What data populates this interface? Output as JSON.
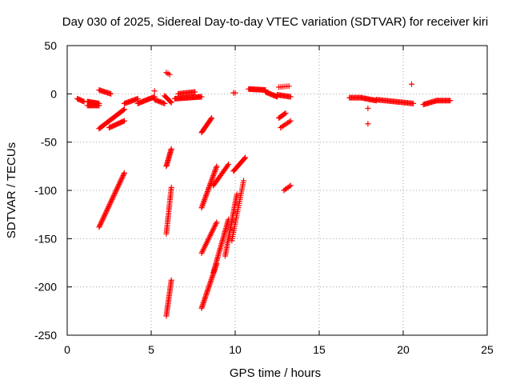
{
  "chart_data": {
    "type": "scatter",
    "title": "Day 030 of 2025, Sidereal Day-to-day VTEC variation (SDTVAR) for receiver kiri",
    "xlabel": "GPS time / hours",
    "ylabel": "SDTVAR / TECUs",
    "xlim": [
      0,
      25
    ],
    "ylim": [
      -250,
      50
    ],
    "xticks": [
      0,
      5,
      10,
      15,
      20,
      25
    ],
    "yticks": [
      -250,
      -200,
      -150,
      -100,
      -50,
      0,
      50
    ],
    "grid": true,
    "marker": "plus",
    "color": "#ff0000",
    "segments": [
      {
        "x0": 0.6,
        "y0": -5,
        "x1": 1.0,
        "y1": -8,
        "n": 8
      },
      {
        "x0": 1.2,
        "y0": -8,
        "x1": 1.9,
        "y1": -10,
        "n": 14
      },
      {
        "x0": 1.2,
        "y0": -12,
        "x1": 1.9,
        "y1": -12,
        "n": 14
      },
      {
        "x0": 1.9,
        "y0": 4,
        "x1": 2.6,
        "y1": 0,
        "n": 12
      },
      {
        "x0": 1.9,
        "y0": -36,
        "x1": 3.4,
        "y1": -16,
        "n": 30
      },
      {
        "x0": 2.5,
        "y0": -35,
        "x1": 3.4,
        "y1": -28,
        "n": 16
      },
      {
        "x0": 1.9,
        "y0": -138,
        "x1": 3.4,
        "y1": -82,
        "n": 44
      },
      {
        "x0": 3.4,
        "y0": -10,
        "x1": 4.2,
        "y1": -5,
        "n": 14
      },
      {
        "x0": 4.2,
        "y0": -10,
        "x1": 5.2,
        "y1": -3,
        "n": 18
      },
      {
        "x0": 5.2,
        "y0": -6,
        "x1": 5.8,
        "y1": -10,
        "n": 10
      },
      {
        "x0": 5.2,
        "y0": 3,
        "x1": 5.3,
        "y1": 3,
        "n": 1
      },
      {
        "x0": 5.8,
        "y0": -2,
        "x1": 6.2,
        "y1": -9,
        "n": 10
      },
      {
        "x0": 5.9,
        "y0": 22,
        "x1": 6.1,
        "y1": 20,
        "n": 3
      },
      {
        "x0": 5.9,
        "y0": -75,
        "x1": 6.2,
        "y1": -57,
        "n": 16
      },
      {
        "x0": 5.9,
        "y0": -145,
        "x1": 6.2,
        "y1": -97,
        "n": 28
      },
      {
        "x0": 5.9,
        "y0": -230,
        "x1": 6.2,
        "y1": -193,
        "n": 24
      },
      {
        "x0": 6.4,
        "y0": -5,
        "x1": 8.0,
        "y1": -3,
        "n": 30
      },
      {
        "x0": 6.6,
        "y0": 0,
        "x1": 7.6,
        "y1": 2,
        "n": 16
      },
      {
        "x0": 8.0,
        "y0": -40,
        "x1": 8.6,
        "y1": -25,
        "n": 16
      },
      {
        "x0": 8.0,
        "y0": -118,
        "x1": 8.9,
        "y1": -75,
        "n": 32
      },
      {
        "x0": 8.0,
        "y0": -165,
        "x1": 8.9,
        "y1": -133,
        "n": 22
      },
      {
        "x0": 8.0,
        "y0": -222,
        "x1": 8.9,
        "y1": -176,
        "n": 34
      },
      {
        "x0": 8.7,
        "y0": -185,
        "x1": 9.6,
        "y1": -130,
        "n": 36
      },
      {
        "x0": 8.7,
        "y0": -95,
        "x1": 9.6,
        "y1": -73,
        "n": 18
      },
      {
        "x0": 9.4,
        "y0": -168,
        "x1": 10.1,
        "y1": -104,
        "n": 38
      },
      {
        "x0": 9.8,
        "y0": -152,
        "x1": 10.5,
        "y1": -90,
        "n": 30
      },
      {
        "x0": 9.9,
        "y0": -80,
        "x1": 10.6,
        "y1": -66,
        "n": 16
      },
      {
        "x0": 9.9,
        "y0": 1,
        "x1": 10.0,
        "y1": 1,
        "n": 2
      },
      {
        "x0": 10.8,
        "y0": 5,
        "x1": 11.8,
        "y1": 4,
        "n": 22
      },
      {
        "x0": 11.8,
        "y0": 2,
        "x1": 12.5,
        "y1": -3,
        "n": 14
      },
      {
        "x0": 12.5,
        "y0": -1,
        "x1": 13.3,
        "y1": -3,
        "n": 14
      },
      {
        "x0": 12.6,
        "y0": 7,
        "x1": 13.2,
        "y1": 8,
        "n": 6
      },
      {
        "x0": 12.6,
        "y0": -25,
        "x1": 13.0,
        "y1": -20,
        "n": 8
      },
      {
        "x0": 12.7,
        "y0": -35,
        "x1": 13.3,
        "y1": -28,
        "n": 8
      },
      {
        "x0": 12.9,
        "y0": -100,
        "x1": 13.3,
        "y1": -95,
        "n": 6
      },
      {
        "x0": 16.8,
        "y0": -4,
        "x1": 17.5,
        "y1": -4,
        "n": 12
      },
      {
        "x0": 17.5,
        "y0": -4,
        "x1": 18.4,
        "y1": -7,
        "n": 16
      },
      {
        "x0": 17.9,
        "y0": -15,
        "x1": 17.9,
        "y1": -15,
        "n": 1
      },
      {
        "x0": 17.9,
        "y0": -31,
        "x1": 17.9,
        "y1": -31,
        "n": 1
      },
      {
        "x0": 18.4,
        "y0": -6,
        "x1": 20.6,
        "y1": -10,
        "n": 34
      },
      {
        "x0": 20.5,
        "y0": 10,
        "x1": 20.5,
        "y1": 10,
        "n": 1
      },
      {
        "x0": 21.2,
        "y0": -11,
        "x1": 22.0,
        "y1": -7,
        "n": 14
      },
      {
        "x0": 22.0,
        "y0": -7,
        "x1": 22.8,
        "y1": -7,
        "n": 14
      }
    ]
  }
}
